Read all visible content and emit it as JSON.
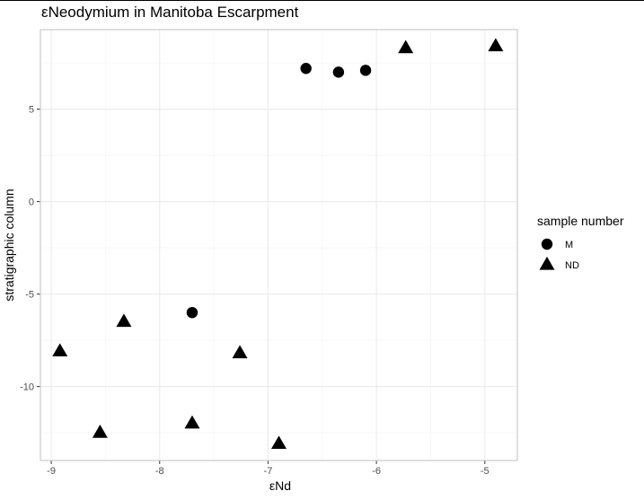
{
  "chart_data": {
    "type": "scatter",
    "title": "εNeodymium in Manitoba Escarpment",
    "xlabel": "εNd",
    "ylabel": "stratigraphic column",
    "xlim": [
      -9.1,
      -4.7
    ],
    "ylim": [
      -14.0,
      9.3
    ],
    "x_ticks": [
      -9,
      -8,
      -7,
      -6,
      -5
    ],
    "y_ticks": [
      5,
      0,
      -5,
      -10
    ],
    "x_tick_labels": [
      "-9",
      "-8",
      "-7",
      "-6",
      "-5"
    ],
    "y_tick_labels": [
      "5",
      "0",
      "-5",
      "-10"
    ],
    "grid": true,
    "legend": {
      "title": "sample number",
      "position": "right",
      "entries": [
        {
          "label": "M",
          "shape": "circle"
        },
        {
          "label": "ND",
          "shape": "triangle"
        }
      ]
    },
    "series": [
      {
        "name": "M",
        "shape": "circle",
        "color": "#000000",
        "points": [
          {
            "x": -6.65,
            "y": 7.2
          },
          {
            "x": -6.35,
            "y": 7.0
          },
          {
            "x": -6.1,
            "y": 7.1
          },
          {
            "x": -7.7,
            "y": -6.0
          }
        ]
      },
      {
        "name": "ND",
        "shape": "triangle",
        "color": "#000000",
        "points": [
          {
            "x": -5.73,
            "y": 8.3
          },
          {
            "x": -4.9,
            "y": 8.4
          },
          {
            "x": -8.33,
            "y": -6.5
          },
          {
            "x": -8.92,
            "y": -8.1
          },
          {
            "x": -7.26,
            "y": -8.2
          },
          {
            "x": -8.55,
            "y": -12.5
          },
          {
            "x": -7.7,
            "y": -12.0
          },
          {
            "x": -6.9,
            "y": -13.1
          }
        ]
      }
    ]
  }
}
